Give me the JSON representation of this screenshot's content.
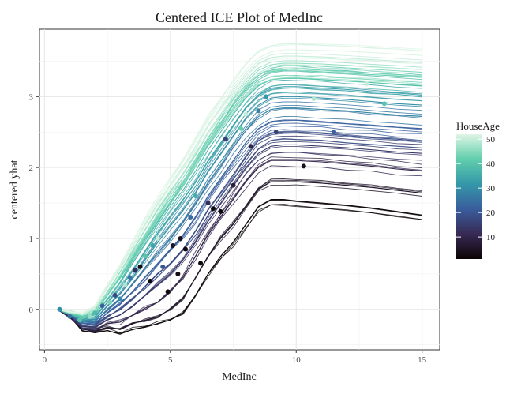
{
  "chart_data": {
    "type": "line",
    "title": "Centered ICE Plot of MedInc",
    "xlabel": "MedInc",
    "ylabel": "centered yhat",
    "xlim": [
      -0.2,
      15.7
    ],
    "ylim": [
      -0.57,
      3.95
    ],
    "x_ticks": [
      0,
      5,
      10,
      15
    ],
    "y_ticks": [
      0,
      1,
      2,
      3
    ],
    "grid": true,
    "legend": {
      "title": "HouseAge",
      "position": "right",
      "min": 1,
      "max": 52,
      "ticks": [
        10,
        20,
        30,
        40,
        50
      ]
    },
    "colormap": [
      "#0b0405",
      "#382a54",
      "#395d9c",
      "#3497a9",
      "#60ceac",
      "#def5e5"
    ],
    "x_grid": [
      0.5,
      1.0,
      1.5,
      2.0,
      2.5,
      3.0,
      3.5,
      4.0,
      4.5,
      5.0,
      5.5,
      6.0,
      6.5,
      7.0,
      7.5,
      8.0,
      8.5,
      9.0,
      9.5,
      10.0,
      11.0,
      12.0,
      13.0,
      14.0,
      15.0
    ],
    "series": [
      {
        "house_age": 2,
        "y": [
          0,
          -0.1,
          -0.3,
          -0.33,
          -0.3,
          -0.35,
          -0.28,
          -0.25,
          -0.2,
          -0.15,
          -0.05,
          0.2,
          0.5,
          0.75,
          0.95,
          1.2,
          1.45,
          1.55,
          1.55,
          1.53,
          1.5,
          1.47,
          1.43,
          1.38,
          1.33
        ]
      },
      {
        "house_age": 6,
        "y": [
          0,
          -0.1,
          -0.28,
          -0.3,
          -0.25,
          -0.28,
          -0.2,
          -0.15,
          -0.1,
          0.0,
          0.15,
          0.45,
          0.75,
          1.0,
          1.2,
          1.45,
          1.7,
          1.8,
          1.8,
          1.8,
          1.78,
          1.75,
          1.72,
          1.68,
          1.64
        ]
      },
      {
        "house_age": 10,
        "y": [
          0,
          -0.09,
          -0.26,
          -0.28,
          -0.2,
          -0.18,
          -0.08,
          0.02,
          0.1,
          0.25,
          0.45,
          0.75,
          1.05,
          1.3,
          1.55,
          1.8,
          2.0,
          2.1,
          2.1,
          2.1,
          2.08,
          2.05,
          2.02,
          1.98,
          1.95
        ]
      },
      {
        "house_age": 14,
        "y": [
          0,
          -0.08,
          -0.24,
          -0.25,
          -0.15,
          -0.08,
          0.05,
          0.2,
          0.35,
          0.5,
          0.7,
          0.95,
          1.25,
          1.5,
          1.75,
          2.0,
          2.2,
          2.3,
          2.32,
          2.32,
          2.3,
          2.28,
          2.25,
          2.22,
          2.2
        ]
      },
      {
        "house_age": 18,
        "y": [
          0,
          -0.08,
          -0.22,
          -0.22,
          -0.1,
          0.0,
          0.15,
          0.32,
          0.5,
          0.65,
          0.85,
          1.1,
          1.4,
          1.65,
          1.9,
          2.15,
          2.38,
          2.48,
          2.5,
          2.5,
          2.48,
          2.45,
          2.42,
          2.4,
          2.37
        ]
      },
      {
        "house_age": 22,
        "y": [
          0,
          -0.07,
          -0.2,
          -0.2,
          -0.05,
          0.08,
          0.25,
          0.45,
          0.65,
          0.85,
          1.05,
          1.3,
          1.6,
          1.85,
          2.1,
          2.35,
          2.55,
          2.65,
          2.67,
          2.67,
          2.65,
          2.62,
          2.6,
          2.57,
          2.55
        ]
      },
      {
        "house_age": 26,
        "y": [
          0,
          -0.07,
          -0.18,
          -0.17,
          0.0,
          0.15,
          0.35,
          0.58,
          0.8,
          1.0,
          1.22,
          1.48,
          1.78,
          2.02,
          2.28,
          2.52,
          2.72,
          2.82,
          2.84,
          2.84,
          2.82,
          2.8,
          2.77,
          2.74,
          2.72
        ]
      },
      {
        "house_age": 30,
        "y": [
          0,
          -0.06,
          -0.16,
          -0.14,
          0.05,
          0.22,
          0.45,
          0.7,
          0.95,
          1.18,
          1.4,
          1.65,
          1.95,
          2.2,
          2.45,
          2.7,
          2.88,
          2.98,
          3.0,
          3.0,
          2.98,
          2.96,
          2.93,
          2.9,
          2.88
        ]
      },
      {
        "house_age": 34,
        "y": [
          0,
          -0.06,
          -0.14,
          -0.1,
          0.1,
          0.3,
          0.55,
          0.82,
          1.08,
          1.32,
          1.55,
          1.8,
          2.1,
          2.35,
          2.6,
          2.85,
          3.02,
          3.12,
          3.14,
          3.14,
          3.12,
          3.1,
          3.07,
          3.05,
          3.02
        ]
      },
      {
        "house_age": 38,
        "y": [
          0,
          -0.05,
          -0.12,
          -0.07,
          0.15,
          0.38,
          0.65,
          0.93,
          1.2,
          1.45,
          1.68,
          1.95,
          2.25,
          2.5,
          2.75,
          2.98,
          3.15,
          3.24,
          3.26,
          3.26,
          3.24,
          3.22,
          3.2,
          3.17,
          3.15
        ]
      },
      {
        "house_age": 42,
        "y": [
          0,
          -0.05,
          -0.1,
          -0.04,
          0.2,
          0.45,
          0.74,
          1.03,
          1.3,
          1.56,
          1.8,
          2.08,
          2.38,
          2.63,
          2.88,
          3.1,
          3.27,
          3.35,
          3.37,
          3.37,
          3.35,
          3.33,
          3.31,
          3.29,
          3.27
        ]
      },
      {
        "house_age": 46,
        "y": [
          0,
          -0.04,
          -0.08,
          -0.01,
          0.25,
          0.52,
          0.82,
          1.12,
          1.4,
          1.66,
          1.9,
          2.18,
          2.48,
          2.73,
          2.98,
          3.2,
          3.37,
          3.45,
          3.47,
          3.47,
          3.46,
          3.44,
          3.42,
          3.4,
          3.38
        ]
      },
      {
        "house_age": 50,
        "y": [
          0,
          -0.04,
          -0.06,
          0.02,
          0.3,
          0.58,
          0.9,
          1.2,
          1.48,
          1.75,
          2.0,
          2.28,
          2.58,
          2.83,
          3.08,
          3.3,
          3.47,
          3.55,
          3.57,
          3.57,
          3.56,
          3.54,
          3.52,
          3.5,
          3.48
        ]
      },
      {
        "house_age": 52,
        "y": [
          0,
          -0.03,
          -0.05,
          0.05,
          0.33,
          0.62,
          0.95,
          1.26,
          1.55,
          1.82,
          2.08,
          2.36,
          2.66,
          2.91,
          3.16,
          3.38,
          3.55,
          3.63,
          3.66,
          3.66,
          3.65,
          3.64,
          3.62,
          3.6,
          3.58
        ]
      }
    ],
    "points": [
      {
        "x": 0.6,
        "y": 0.0,
        "house_age": 30
      },
      {
        "x": 1.0,
        "y": -0.1,
        "house_age": 25
      },
      {
        "x": 1.4,
        "y": -0.15,
        "house_age": 40
      },
      {
        "x": 1.8,
        "y": -0.1,
        "house_age": 46
      },
      {
        "x": 2.0,
        "y": -0.05,
        "house_age": 38
      },
      {
        "x": 2.3,
        "y": 0.05,
        "house_age": 22
      },
      {
        "x": 2.6,
        "y": 0.1,
        "house_age": 44
      },
      {
        "x": 2.8,
        "y": 0.2,
        "house_age": 18
      },
      {
        "x": 3.0,
        "y": 0.15,
        "house_age": 30
      },
      {
        "x": 3.2,
        "y": 0.35,
        "house_age": 48
      },
      {
        "x": 3.4,
        "y": 0.45,
        "house_age": 26
      },
      {
        "x": 3.6,
        "y": 0.55,
        "house_age": 12
      },
      {
        "x": 3.8,
        "y": 0.6,
        "house_age": 3
      },
      {
        "x": 4.0,
        "y": 0.75,
        "house_age": 40
      },
      {
        "x": 4.2,
        "y": 0.4,
        "house_age": 2
      },
      {
        "x": 4.3,
        "y": 0.9,
        "house_age": 34
      },
      {
        "x": 4.5,
        "y": 1.0,
        "house_age": 50
      },
      {
        "x": 4.7,
        "y": 0.6,
        "house_age": 20
      },
      {
        "x": 4.9,
        "y": 0.25,
        "house_age": 2
      },
      {
        "x": 5.1,
        "y": 0.9,
        "house_age": 5
      },
      {
        "x": 5.3,
        "y": 0.5,
        "house_age": 3
      },
      {
        "x": 5.4,
        "y": 1.0,
        "house_age": 4
      },
      {
        "x": 5.6,
        "y": 0.85,
        "house_age": 2
      },
      {
        "x": 5.8,
        "y": 1.3,
        "house_age": 24
      },
      {
        "x": 6.0,
        "y": 1.6,
        "house_age": 36
      },
      {
        "x": 6.2,
        "y": 0.65,
        "house_age": 2
      },
      {
        "x": 6.5,
        "y": 1.5,
        "house_age": 12
      },
      {
        "x": 6.7,
        "y": 1.42,
        "house_age": 2
      },
      {
        "x": 7.0,
        "y": 1.38,
        "house_age": 2
      },
      {
        "x": 7.2,
        "y": 2.4,
        "house_age": 16
      },
      {
        "x": 7.5,
        "y": 1.75,
        "house_age": 8
      },
      {
        "x": 7.8,
        "y": 2.55,
        "house_age": 42
      },
      {
        "x": 8.0,
        "y": 2.75,
        "house_age": 50
      },
      {
        "x": 8.2,
        "y": 2.3,
        "house_age": 10
      },
      {
        "x": 8.5,
        "y": 2.8,
        "house_age": 28
      },
      {
        "x": 8.8,
        "y": 3.0,
        "house_age": 32
      },
      {
        "x": 9.2,
        "y": 2.5,
        "house_age": 16
      },
      {
        "x": 10.3,
        "y": 2.02,
        "house_age": 4
      },
      {
        "x": 10.7,
        "y": 2.97,
        "house_age": 48
      },
      {
        "x": 11.5,
        "y": 2.5,
        "house_age": 22
      },
      {
        "x": 12.8,
        "y": 3.18,
        "house_age": 50
      },
      {
        "x": 13.5,
        "y": 2.9,
        "house_age": 40
      }
    ]
  }
}
